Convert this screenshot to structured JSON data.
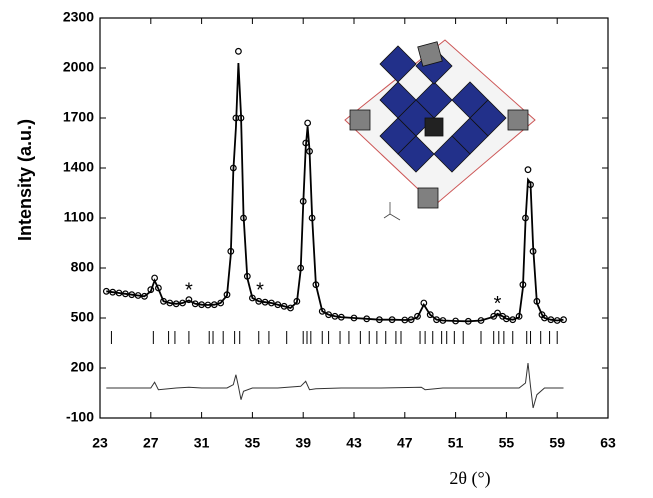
{
  "chart_data": {
    "type": "line",
    "xlabel": "2θ (°)",
    "ylabel": "Intensity (a.u.)",
    "xlim": [
      23,
      63
    ],
    "xticks": [
      23,
      27,
      31,
      35,
      39,
      43,
      47,
      51,
      55,
      59,
      63
    ],
    "ylim": [
      -100,
      2300
    ],
    "yticks": [
      -100,
      200,
      500,
      800,
      1100,
      1400,
      1700,
      2000,
      2300
    ],
    "x": [
      23.5,
      24,
      24.5,
      25,
      25.5,
      26,
      26.5,
      27,
      27.3,
      27.6,
      28,
      28.5,
      29,
      29.5,
      30,
      30.5,
      31,
      31.5,
      32,
      32.5,
      33,
      33.3,
      33.5,
      33.7,
      33.9,
      34.1,
      34.3,
      34.6,
      35,
      35.5,
      36,
      36.5,
      37,
      37.5,
      38,
      38.5,
      38.8,
      39,
      39.2,
      39.35,
      39.5,
      39.7,
      40,
      40.5,
      41,
      41.5,
      42,
      43,
      44,
      45,
      46,
      47,
      47.5,
      48,
      48.5,
      49,
      49.5,
      50,
      51,
      52,
      53,
      54,
      54.3,
      54.7,
      55,
      55.5,
      56,
      56.3,
      56.5,
      56.7,
      56.9,
      57.1,
      57.4,
      57.8,
      58,
      58.5,
      59,
      59.5
    ],
    "series": [
      {
        "marker": "circle",
        "color": "#000000",
        "values": [
          660,
          655,
          650,
          645,
          640,
          635,
          630,
          670,
          740,
          680,
          600,
          590,
          585,
          590,
          610,
          585,
          580,
          578,
          580,
          590,
          640,
          900,
          1400,
          1700,
          2100,
          1700,
          1100,
          750,
          620,
          600,
          595,
          590,
          580,
          570,
          560,
          600,
          800,
          1200,
          1550,
          1670,
          1500,
          1100,
          700,
          540,
          520,
          510,
          505,
          500,
          495,
          490,
          490,
          488,
          490,
          510,
          590,
          520,
          490,
          485,
          482,
          480,
          485,
          510,
          530,
          510,
          495,
          490,
          510,
          700,
          1100,
          1390,
          1300,
          900,
          600,
          520,
          500,
          490,
          485,
          490
        ]
      },
      {
        "marker": "line",
        "color": "#000000",
        "values": [
          660,
          655,
          650,
          645,
          640,
          635,
          630,
          660,
          725,
          675,
          600,
          590,
          585,
          590,
          605,
          585,
          580,
          578,
          580,
          590,
          635,
          880,
          1380,
          1640,
          2030,
          1720,
          1120,
          740,
          620,
          600,
          595,
          590,
          580,
          570,
          560,
          595,
          790,
          1180,
          1520,
          1650,
          1510,
          1110,
          700,
          540,
          520,
          510,
          505,
          500,
          495,
          490,
          490,
          488,
          490,
          505,
          580,
          520,
          490,
          485,
          482,
          480,
          485,
          508,
          525,
          510,
          495,
          490,
          505,
          680,
          1080,
          1330,
          1310,
          930,
          590,
          520,
          500,
          490,
          485,
          490
        ]
      }
    ],
    "difference": {
      "color": "#333333",
      "x": [
        23.5,
        25,
        27,
        27.3,
        27.6,
        29,
        30,
        31,
        33,
        33.5,
        33.7,
        33.9,
        34.1,
        34.3,
        35,
        37,
        38.8,
        39.2,
        39.5,
        40,
        42,
        45,
        48.3,
        48.6,
        50,
        54,
        56,
        56.5,
        56.7,
        56.9,
        57.1,
        57.4,
        58,
        59.5
      ],
      "values": [
        80,
        80,
        80,
        115,
        70,
        80,
        85,
        80,
        80,
        100,
        160,
        90,
        10,
        60,
        80,
        80,
        90,
        120,
        70,
        75,
        80,
        80,
        85,
        70,
        80,
        80,
        80,
        110,
        230,
        90,
        -40,
        40,
        80,
        80
      ]
    },
    "bragg_positions": [
      23.9,
      27.2,
      28.4,
      28.9,
      30.0,
      31.6,
      31.9,
      32.7,
      33.6,
      34.0,
      35.5,
      36.3,
      37.7,
      39.0,
      39.3,
      39.6,
      40.5,
      41.0,
      41.9,
      42.6,
      43.5,
      44.2,
      44.8,
      45.5,
      46.3,
      46.7,
      48.2,
      48.6,
      49.2,
      49.9,
      50.3,
      50.9,
      51.6,
      53.0,
      54.0,
      54.4,
      54.8,
      55.5,
      56.6,
      56.9,
      57.7,
      58.4,
      59.0
    ],
    "annotations": [
      {
        "text": "*",
        "x": 30,
        "y": 660
      },
      {
        "text": "*",
        "x": 35.6,
        "y": 660
      },
      {
        "text": "*",
        "x": 54.3,
        "y": 580
      }
    ]
  }
}
